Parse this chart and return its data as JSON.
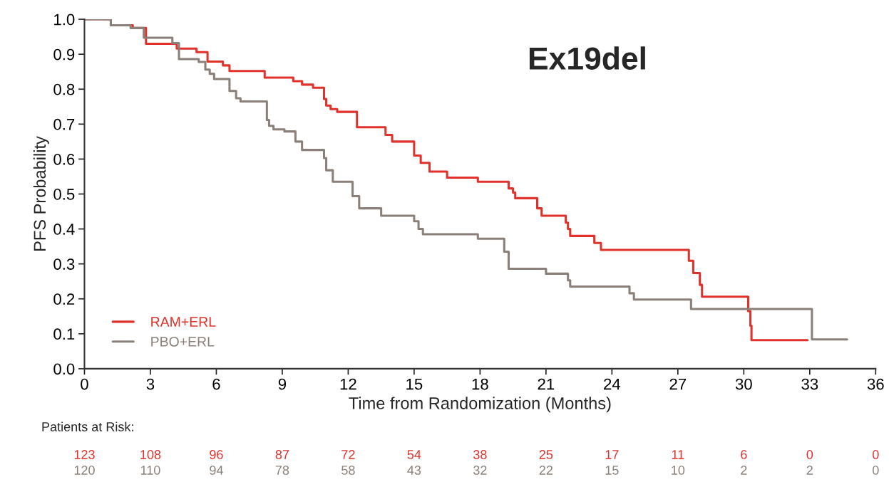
{
  "chart_data": {
    "type": "step",
    "title": "Ex19del",
    "xlabel": "Time from Randomization (Months)",
    "ylabel": "PFS Probability",
    "xlim": [
      0,
      36
    ],
    "xticks": [
      0,
      3,
      6,
      9,
      12,
      15,
      18,
      21,
      24,
      27,
      30,
      33,
      36
    ],
    "ylim": [
      0,
      1
    ],
    "yticks": [
      {
        "value": 0,
        "label": "0.0"
      },
      0.1,
      0.2,
      0.3,
      0.4,
      0.5,
      0.6,
      0.7,
      0.8,
      0.9,
      {
        "value": 1,
        "label": "1.0"
      }
    ],
    "grid": false,
    "legend": "bottom left",
    "line_style": "solid",
    "marker": "none",
    "series": [
      {
        "name": "RAM+ERL",
        "color": "#e0312a",
        "x": [
          0,
          1.2,
          2.2,
          2.8,
          4.2,
          5.1,
          5.6,
          6.3,
          6.6,
          8.2,
          9.5,
          9.9,
          10.4,
          10.9,
          11.0,
          11.2,
          11.5,
          12.4,
          13.7,
          14.0,
          15.0,
          15.3,
          15.7,
          16.5,
          17.9,
          19.3,
          19.5,
          19.6,
          20.6,
          20.8,
          21.9,
          22.0,
          22.1,
          23.2,
          23.5,
          27.5,
          27.7,
          28.0,
          28.1,
          30.2,
          30.3,
          30.35,
          32.9
        ],
        "values": [
          1.0,
          0.983,
          0.975,
          0.93,
          0.916,
          0.906,
          0.879,
          0.868,
          0.852,
          0.833,
          0.823,
          0.813,
          0.804,
          0.772,
          0.753,
          0.743,
          0.735,
          0.691,
          0.669,
          0.65,
          0.61,
          0.589,
          0.564,
          0.547,
          0.535,
          0.516,
          0.504,
          0.488,
          0.459,
          0.438,
          0.418,
          0.4,
          0.38,
          0.36,
          0.34,
          0.309,
          0.274,
          0.24,
          0.206,
          0.165,
          0.123,
          0.082,
          0.082
        ]
      },
      {
        "name": "PBO+ERL",
        "color": "#8a8079",
        "x": [
          0,
          1.2,
          2.1,
          2.7,
          4.0,
          4.3,
          5.2,
          5.5,
          5.7,
          5.9,
          6.6,
          6.9,
          7.1,
          8.3,
          8.4,
          8.6,
          9.1,
          9.6,
          9.9,
          10.9,
          11.0,
          11.3,
          12.2,
          12.5,
          13.5,
          15.0,
          15.2,
          15.4,
          17.9,
          19.1,
          19.3,
          21.0,
          22.0,
          22.1,
          24.8,
          25.0,
          27.6,
          33.1,
          34.7
        ],
        "values": [
          1.0,
          0.983,
          0.975,
          0.947,
          0.932,
          0.886,
          0.878,
          0.856,
          0.844,
          0.829,
          0.795,
          0.774,
          0.765,
          0.712,
          0.695,
          0.685,
          0.679,
          0.65,
          0.626,
          0.603,
          0.568,
          0.535,
          0.494,
          0.459,
          0.438,
          0.422,
          0.4,
          0.385,
          0.372,
          0.335,
          0.286,
          0.272,
          0.253,
          0.235,
          0.216,
          0.198,
          0.171,
          0.084,
          0.084
        ]
      }
    ],
    "annotations": [
      "Patients at Risk:",
      "123",
      "108",
      "96",
      "87",
      "72",
      "54",
      "38",
      "25",
      "17",
      "11",
      "6",
      "0",
      "0",
      "120",
      "110",
      "94",
      "78",
      "58",
      "43",
      "32",
      "22",
      "15",
      "10",
      "2",
      "2",
      "0"
    ]
  }
}
